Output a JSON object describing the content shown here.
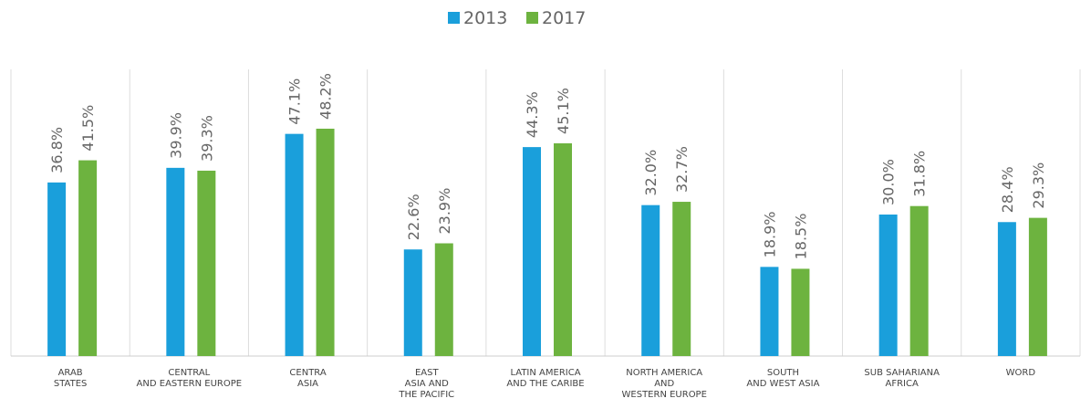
{
  "chart_data": {
    "type": "bar",
    "categories": [
      "ARAB\nSTATES",
      "CENTRAL\nAND EASTERN EUROPE",
      "CENTRA\nASIA",
      "EAST\nASIA AND\nTHE PACIFIC",
      "LATIN AMERICA\nAND THE CARIBE",
      "NORTH  AMERICA\nAND\nWESTERN EUROPE",
      "SOUTH\nAND WEST ASIA",
      "SUB SAHARIANA\nAFRICA",
      "WORD"
    ],
    "series": [
      {
        "name": "2013",
        "color": "#1a9fdb",
        "values": [
          36.8,
          39.9,
          47.1,
          22.6,
          44.3,
          32.0,
          18.9,
          30.0,
          28.4
        ],
        "value_labels": [
          "36.8%",
          "39.9%",
          "47.1%",
          "22.6%",
          "44.3%",
          "32.0%",
          "18.9%",
          "30.0%",
          "28.4%"
        ]
      },
      {
        "name": "2017",
        "color": "#6db33f",
        "values": [
          41.5,
          39.3,
          48.2,
          23.9,
          45.1,
          32.7,
          18.5,
          31.8,
          29.3
        ],
        "value_labels": [
          "41.5%",
          "39.3%",
          "48.2%",
          "23.9%",
          "45.1%",
          "32.7%",
          "18.5%",
          "31.8%",
          "29.3%"
        ]
      }
    ],
    "ylim": [
      0,
      60
    ],
    "legend": "top"
  }
}
